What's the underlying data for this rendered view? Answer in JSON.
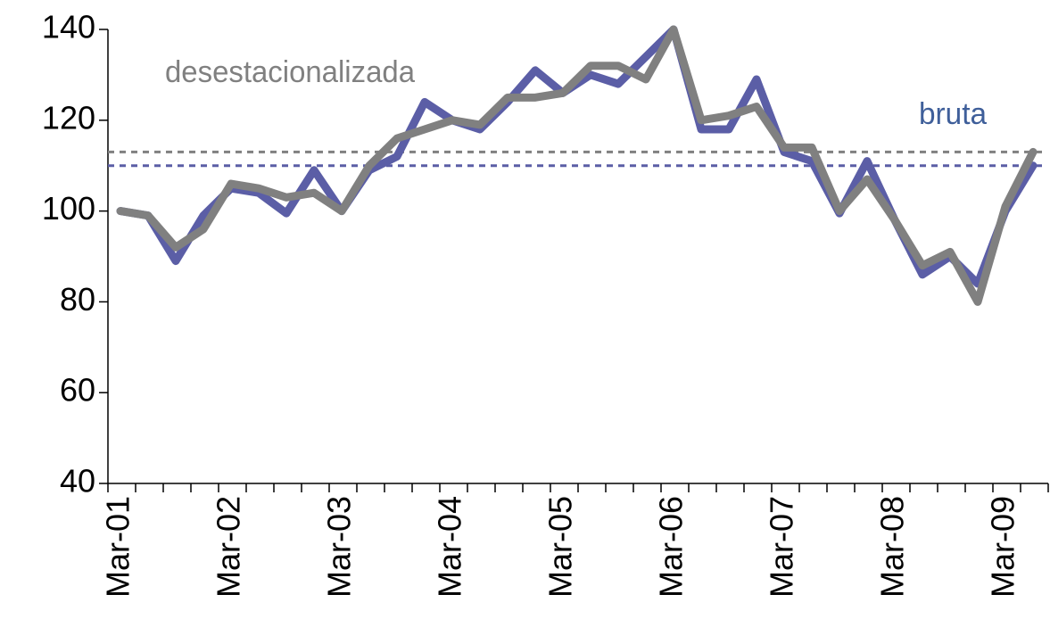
{
  "chart_data": {
    "type": "line",
    "categories": [
      "Mar-01",
      null,
      null,
      null,
      "Mar-02",
      null,
      null,
      null,
      "Mar-03",
      null,
      null,
      null,
      "Mar-04",
      null,
      null,
      null,
      "Mar-05",
      null,
      null,
      null,
      "Mar-06",
      null,
      null,
      null,
      "Mar-07",
      null,
      null,
      null,
      "Mar-08",
      null,
      null,
      null,
      "Mar-09",
      null
    ],
    "series": [
      {
        "name": "bruta",
        "color": "#5b5ea6",
        "values": [
          100,
          99,
          89,
          99,
          105,
          104,
          99.5,
          109,
          100,
          109,
          112,
          124,
          120,
          118,
          124,
          131,
          126,
          130,
          128,
          134,
          140,
          118,
          118,
          129,
          113,
          111,
          99.5,
          111,
          98,
          86,
          90,
          84,
          100,
          110
        ]
      },
      {
        "name": "desestacionalizada",
        "color": "#808080",
        "values": [
          100,
          99,
          92,
          96,
          106,
          105,
          103,
          104,
          100,
          110,
          116,
          118,
          120,
          119,
          125,
          125,
          126,
          132,
          132,
          129,
          140,
          120,
          121,
          123,
          114,
          114,
          100,
          107,
          98,
          88,
          91,
          80,
          101,
          113
        ]
      }
    ],
    "reference_lines": [
      {
        "value": 113,
        "color": "#808080"
      },
      {
        "value": 110,
        "color": "#5b5ea6"
      }
    ],
    "ylim": [
      40,
      140
    ],
    "yticks": [
      40,
      60,
      80,
      100,
      120,
      140
    ],
    "grid": false
  }
}
